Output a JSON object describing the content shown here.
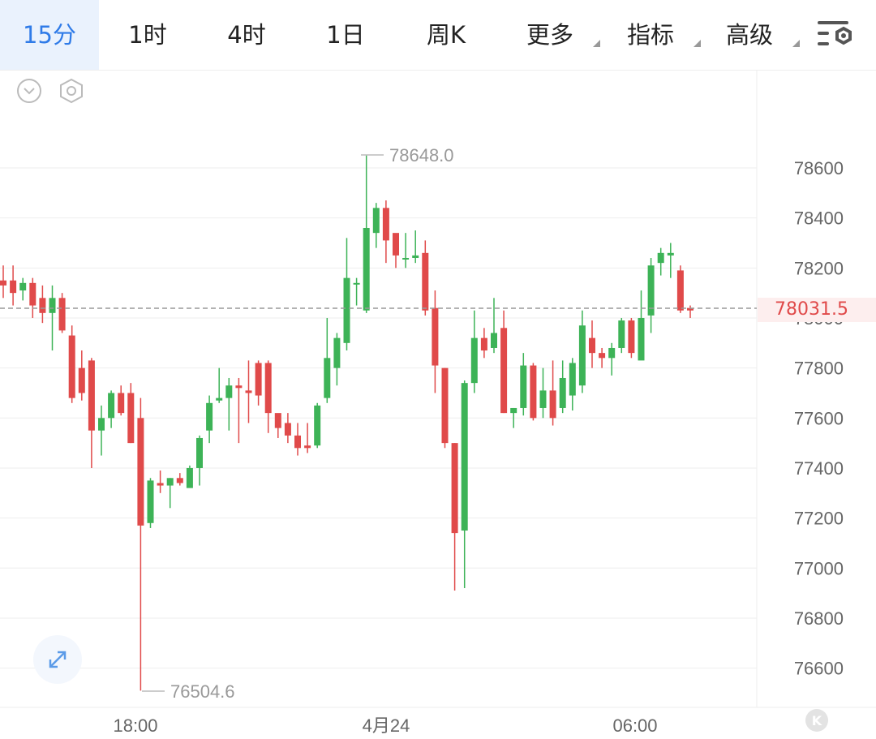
{
  "toolbar": {
    "tabs": [
      {
        "label": "15分",
        "active": true
      },
      {
        "label": "1时"
      },
      {
        "label": "4时"
      },
      {
        "label": "1日"
      },
      {
        "label": "周K"
      },
      {
        "label": "更多",
        "dropdown": true
      },
      {
        "label": "指标",
        "dropdown": true
      },
      {
        "label": "高级",
        "dropdown": true
      }
    ],
    "settings_icon": "chart-settings-icon"
  },
  "colors": {
    "up": "#3db357",
    "down": "#e04a4a",
    "accent": "#2f7be8",
    "grid": "#eeeeee",
    "axis_text": "#666666"
  },
  "chart_data": {
    "type": "candlestick",
    "y_ticks": [
      "78600",
      "78400",
      "78200",
      "78000",
      "77800",
      "77600",
      "77400",
      "77200",
      "77000",
      "76800",
      "76600"
    ],
    "x_ticks": [
      "18:00",
      "4月24",
      "06:00"
    ],
    "high_label": "78648.0",
    "low_label": "76504.6",
    "current_price": "78031.5",
    "candles": [
      [
        78150,
        78130,
        78210,
        78080
      ],
      [
        78150,
        78100,
        78210,
        78050
      ],
      [
        78110,
        78140,
        78160,
        78070
      ],
      [
        78140,
        78050,
        78160,
        78000
      ],
      [
        78080,
        78020,
        78130,
        77980
      ],
      [
        78020,
        78080,
        78130,
        77870
      ],
      [
        78080,
        77950,
        78100,
        77940
      ],
      [
        77930,
        77680,
        77970,
        77660
      ],
      [
        77800,
        77700,
        77870,
        77670
      ],
      [
        77830,
        77550,
        77840,
        77400
      ],
      [
        77550,
        77600,
        77650,
        77450
      ],
      [
        77600,
        77700,
        77710,
        77560
      ],
      [
        77700,
        77620,
        77730,
        77610
      ],
      [
        77700,
        77500,
        77740,
        77500
      ],
      [
        77600,
        77170,
        77680,
        76510
      ],
      [
        77180,
        77350,
        77360,
        77160
      ],
      [
        77340,
        77330,
        77390,
        77300
      ],
      [
        77330,
        77360,
        77360,
        77240
      ],
      [
        77360,
        77340,
        77380,
        77330
      ],
      [
        77320,
        77400,
        77410,
        77330
      ],
      [
        77400,
        77520,
        77530,
        77330
      ],
      [
        77550,
        77660,
        77690,
        77500
      ],
      [
        77670,
        77680,
        77800,
        77660
      ],
      [
        77680,
        77730,
        77760,
        77550
      ],
      [
        77730,
        77720,
        77760,
        77500
      ],
      [
        77710,
        77700,
        77830,
        77580
      ],
      [
        77820,
        77690,
        77830,
        77650
      ],
      [
        77820,
        77620,
        77830,
        77540
      ],
      [
        77620,
        77560,
        77610,
        77520
      ],
      [
        77580,
        77530,
        77620,
        77500
      ],
      [
        77530,
        77480,
        77580,
        77450
      ],
      [
        77490,
        77480,
        77580,
        77460
      ],
      [
        77490,
        77650,
        77660,
        77480
      ],
      [
        77680,
        77840,
        78000,
        77660
      ],
      [
        77800,
        77920,
        77940,
        77730
      ],
      [
        77900,
        78160,
        78320,
        77870
      ],
      [
        78140,
        78140,
        78160,
        78050
      ],
      [
        78030,
        78360,
        78650,
        78020
      ],
      [
        78340,
        78440,
        78460,
        78280
      ],
      [
        78440,
        78310,
        78470,
        78220
      ],
      [
        78340,
        78250,
        78320,
        78200
      ],
      [
        78240,
        78240,
        78340,
        78200
      ],
      [
        78240,
        78250,
        78350,
        78220
      ],
      [
        78260,
        78030,
        78310,
        78010
      ],
      [
        78040,
        77810,
        78110,
        77700
      ],
      [
        77800,
        77500,
        77800,
        77480
      ],
      [
        77500,
        77140,
        77500,
        76910
      ],
      [
        77150,
        77740,
        77750,
        76920
      ],
      [
        77740,
        77920,
        78030,
        77700
      ],
      [
        77920,
        77870,
        77960,
        77840
      ],
      [
        77880,
        77940,
        78080,
        77860
      ],
      [
        77960,
        77620,
        78030,
        77620
      ],
      [
        77620,
        77640,
        77640,
        77560
      ],
      [
        77640,
        77810,
        77860,
        77610
      ],
      [
        77810,
        77600,
        77820,
        77590
      ],
      [
        77640,
        77710,
        77800,
        77600
      ],
      [
        77710,
        77600,
        77830,
        77570
      ],
      [
        77640,
        77760,
        77830,
        77620
      ],
      [
        77690,
        77820,
        77840,
        77630
      ],
      [
        77730,
        77970,
        78030,
        77700
      ],
      [
        77920,
        77860,
        77990,
        77800
      ],
      [
        77860,
        77840,
        77880,
        77800
      ],
      [
        77840,
        77880,
        77900,
        77770
      ],
      [
        77880,
        77990,
        78000,
        77860
      ],
      [
        77990,
        77860,
        78000,
        77840
      ],
      [
        77830,
        78000,
        78110,
        77840
      ],
      [
        78010,
        78210,
        78240,
        77940
      ],
      [
        78220,
        78260,
        78280,
        78170
      ],
      [
        78250,
        78260,
        78300,
        78160
      ],
      [
        78190,
        78030,
        78210,
        78020
      ],
      [
        78040,
        78030,
        78050,
        78000
      ]
    ]
  }
}
